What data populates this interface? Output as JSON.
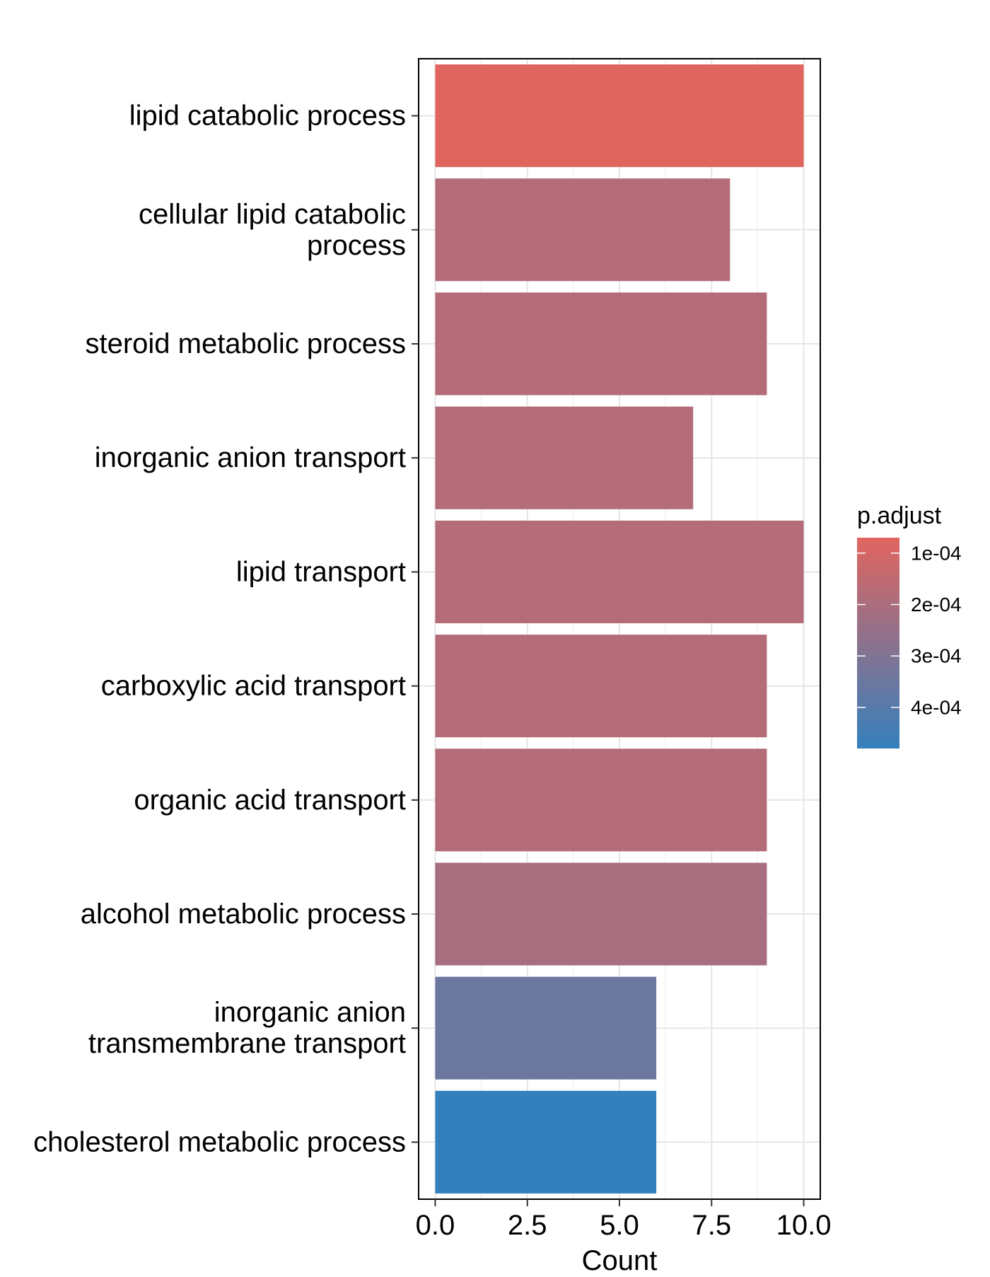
{
  "chart_data": {
    "type": "bar",
    "orientation": "horizontal",
    "categories": [
      [
        "lipid catabolic process"
      ],
      [
        "cellular lipid catabolic",
        "process"
      ],
      [
        "steroid metabolic process"
      ],
      [
        "inorganic anion transport"
      ],
      [
        "lipid transport"
      ],
      [
        "carboxylic acid transport"
      ],
      [
        "organic acid transport"
      ],
      [
        "alcohol metabolic process"
      ],
      [
        "inorganic anion",
        "transmembrane transport"
      ],
      [
        "cholesterol metabolic process"
      ]
    ],
    "values": [
      10,
      8,
      9,
      7,
      10,
      9,
      9,
      9,
      6,
      6
    ],
    "p_adjust": [
      7e-05,
      0.00018,
      0.00018,
      0.00018,
      0.00018,
      0.00018,
      0.00018,
      0.00021,
      0.00035,
      0.00048
    ],
    "xlabel": "Count",
    "ylabel": "",
    "xlim": [
      -0.45,
      10.45
    ],
    "xticks": [
      "0.0",
      "2.5",
      "5.0",
      "7.5",
      "10.0"
    ],
    "xtick_values": [
      0,
      2.5,
      5,
      7.5,
      10
    ],
    "grid": true,
    "legend": {
      "title": "p.adjust",
      "position": "right",
      "labels": [
        "1e-04",
        "2e-04",
        "3e-04",
        "4e-04"
      ],
      "label_values": [
        0.0001,
        0.0002,
        0.0003,
        0.0004
      ],
      "range": [
        7e-05,
        0.00048
      ],
      "color_low": "#E1655F",
      "color_high": "#3480BD"
    }
  }
}
